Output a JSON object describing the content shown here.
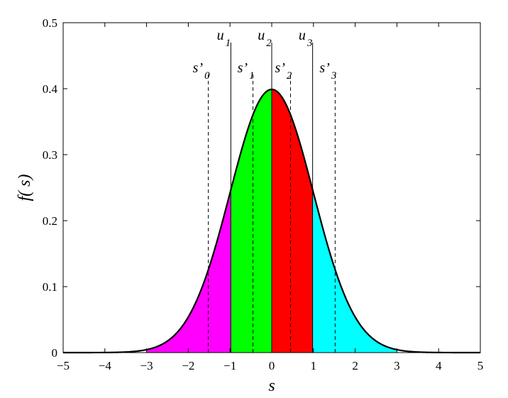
{
  "chart_data": {
    "type": "area",
    "curve": "standard normal density",
    "xlabel": "s",
    "ylabel": "f( s)",
    "xlim": [
      -5,
      5
    ],
    "ylim": [
      0,
      0.5
    ],
    "xticks": [
      -5,
      -4,
      -3,
      -2,
      -1,
      0,
      1,
      2,
      3,
      4,
      5
    ],
    "xtick_labels": [
      "−5",
      "−4",
      "−3",
      "−2",
      "−1",
      "0",
      "1",
      "2",
      "3",
      "4",
      "5"
    ],
    "yticks": [
      0,
      0.1,
      0.2,
      0.3,
      0.4,
      0.5
    ],
    "ytick_labels": [
      "0",
      "0.1",
      "0.2",
      "0.3",
      "0.4",
      "0.5"
    ],
    "grid": false,
    "regions": [
      {
        "from": -3.0,
        "to": -0.98,
        "color": "#ff00ff"
      },
      {
        "from": -0.98,
        "to": 0.0,
        "color": "#00ff00"
      },
      {
        "from": 0.0,
        "to": 0.98,
        "color": "#ff0000"
      },
      {
        "from": 0.98,
        "to": 3.0,
        "color": "#00ffff"
      }
    ],
    "solid_markers": [
      {
        "x": -0.98,
        "base": "u",
        "sub": "1"
      },
      {
        "x": 0.0,
        "base": "u",
        "sub": "2"
      },
      {
        "x": 0.98,
        "base": "u",
        "sub": "3"
      }
    ],
    "dashed_markers": [
      {
        "x": -1.52,
        "base": "s’",
        "sub": "0"
      },
      {
        "x": -0.45,
        "base": "s’",
        "sub": "1"
      },
      {
        "x": 0.45,
        "base": "s’",
        "sub": "2"
      },
      {
        "x": 1.52,
        "base": "s’",
        "sub": "3"
      }
    ]
  }
}
